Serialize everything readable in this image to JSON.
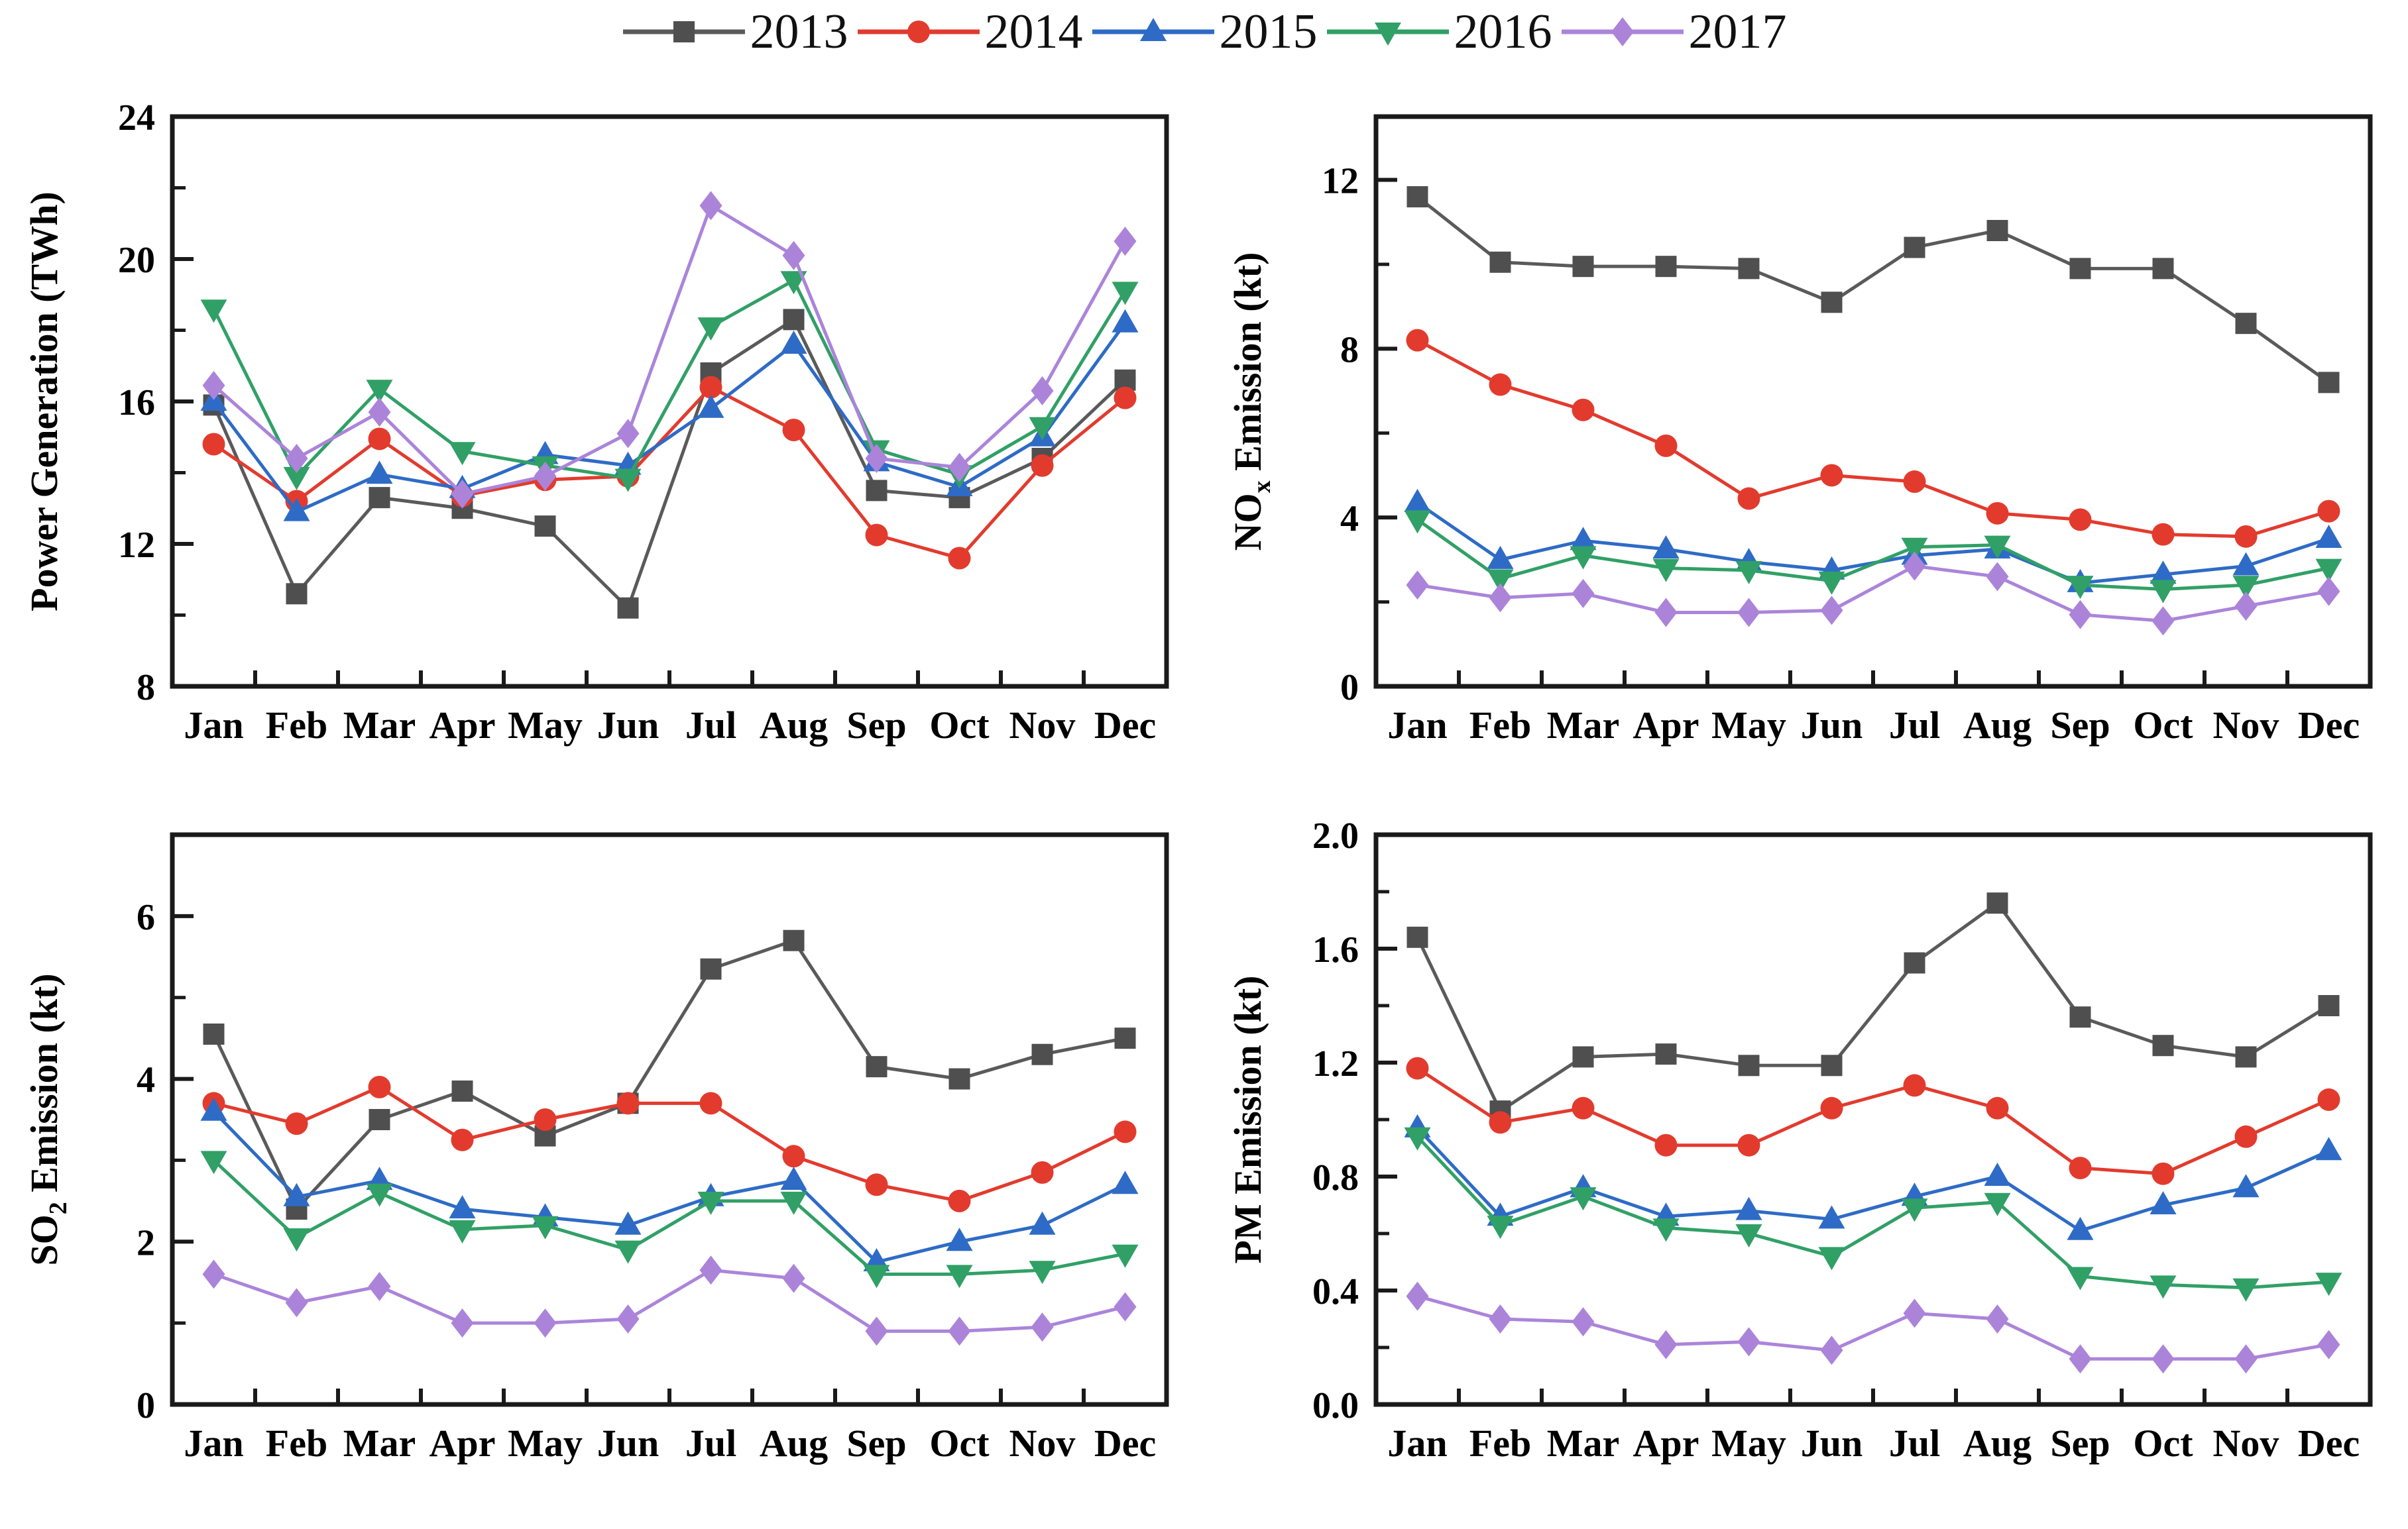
{
  "legend": {
    "items": [
      {
        "label": "2013",
        "color": "#4f4f4f",
        "line_color": "#5a5a5a",
        "marker": "square"
      },
      {
        "label": "2014",
        "color": "#e23b2e",
        "line_color": "#e23b2e",
        "marker": "circle"
      },
      {
        "label": "2015",
        "color": "#2e6bc6",
        "line_color": "#2e6bc6",
        "marker": "triangle-up"
      },
      {
        "label": "2016",
        "color": "#31a066",
        "line_color": "#31a066",
        "marker": "triangle-down"
      },
      {
        "label": "2017",
        "color": "#ab84da",
        "line_color": "#ab84da",
        "marker": "diamond"
      }
    ]
  },
  "months": [
    "Jan",
    "Feb",
    "Mar",
    "Apr",
    "May",
    "Jun",
    "Jul",
    "Aug",
    "Sep",
    "Oct",
    "Nov",
    "Dec"
  ],
  "chart_data": [
    {
      "id": "power-generation",
      "type": "line",
      "ylabel": "Power Generation (TWh)",
      "ylabel_parts": [
        {
          "text": "Power Generation (TWh)"
        }
      ],
      "ylim": [
        8,
        24
      ],
      "yticks": [
        8,
        12,
        16,
        20,
        24
      ],
      "ytick_labels": [
        "8",
        "12",
        "16",
        "20",
        "24"
      ],
      "yminor": [
        10,
        14,
        18,
        22
      ],
      "series": [
        {
          "name": "2013",
          "values": [
            15.9,
            10.6,
            13.3,
            13.0,
            12.5,
            10.2,
            16.8,
            18.3,
            13.5,
            13.3,
            14.4,
            16.6
          ]
        },
        {
          "name": "2014",
          "values": [
            14.8,
            13.2,
            14.95,
            13.35,
            13.8,
            13.9,
            16.4,
            15.2,
            12.25,
            11.6,
            14.2,
            16.1
          ]
        },
        {
          "name": "2015",
          "values": [
            16.0,
            12.9,
            13.95,
            13.55,
            14.5,
            14.2,
            15.8,
            17.6,
            14.3,
            13.6,
            15.0,
            18.2
          ]
        },
        {
          "name": "2016",
          "values": [
            18.6,
            13.9,
            16.35,
            14.6,
            14.2,
            13.85,
            18.1,
            19.4,
            14.65,
            13.95,
            15.3,
            19.1
          ]
        },
        {
          "name": "2017",
          "values": [
            16.45,
            14.4,
            15.7,
            13.4,
            13.9,
            15.1,
            21.5,
            20.1,
            14.4,
            14.15,
            16.3,
            20.5
          ]
        }
      ]
    },
    {
      "id": "nox-emission",
      "type": "line",
      "ylabel": "NOx Emission (kt)",
      "ylabel_parts": [
        {
          "text": "NO"
        },
        {
          "text": "x",
          "sub": true
        },
        {
          "text": " Emission (kt)"
        }
      ],
      "ylim": [
        0,
        13.5
      ],
      "yticks": [
        0,
        4,
        8,
        12
      ],
      "ytick_labels": [
        "0",
        "4",
        "8",
        "12"
      ],
      "yminor": [
        2,
        6,
        10
      ],
      "series": [
        {
          "name": "2013",
          "values": [
            11.6,
            10.05,
            9.95,
            9.95,
            9.9,
            9.1,
            10.4,
            10.8,
            9.9,
            9.9,
            8.6,
            7.2
          ]
        },
        {
          "name": "2014",
          "values": [
            8.2,
            7.15,
            6.55,
            5.7,
            4.45,
            5.0,
            4.85,
            4.1,
            3.95,
            3.6,
            3.55,
            4.15
          ]
        },
        {
          "name": "2015",
          "values": [
            4.35,
            3.0,
            3.45,
            3.25,
            2.95,
            2.75,
            3.1,
            3.25,
            2.45,
            2.65,
            2.85,
            3.5
          ]
        },
        {
          "name": "2016",
          "values": [
            3.95,
            2.55,
            3.1,
            2.8,
            2.75,
            2.5,
            3.3,
            3.35,
            2.4,
            2.3,
            2.4,
            2.8
          ]
        },
        {
          "name": "2017",
          "values": [
            2.4,
            2.1,
            2.2,
            1.75,
            1.75,
            1.8,
            2.85,
            2.6,
            1.7,
            1.55,
            1.9,
            2.25
          ]
        }
      ]
    },
    {
      "id": "so2-emission",
      "type": "line",
      "ylabel": "SO2 Emission (kt)",
      "ylabel_parts": [
        {
          "text": "SO"
        },
        {
          "text": "2",
          "sub": true
        },
        {
          "text": " Emission (kt)"
        }
      ],
      "ylim": [
        0,
        7
      ],
      "yticks": [
        0,
        2,
        4,
        6
      ],
      "ytick_labels": [
        "0",
        "2",
        "4",
        "6"
      ],
      "yminor": [
        1,
        3,
        5
      ],
      "series": [
        {
          "name": "2013",
          "values": [
            4.55,
            2.4,
            3.5,
            3.85,
            3.3,
            3.7,
            5.35,
            5.7,
            4.15,
            4.0,
            4.3,
            4.5
          ]
        },
        {
          "name": "2014",
          "values": [
            3.7,
            3.45,
            3.9,
            3.25,
            3.5,
            3.7,
            3.7,
            3.05,
            2.7,
            2.5,
            2.85,
            3.35
          ]
        },
        {
          "name": "2015",
          "values": [
            3.6,
            2.55,
            2.75,
            2.4,
            2.3,
            2.2,
            2.55,
            2.75,
            1.75,
            2.0,
            2.2,
            2.7
          ]
        },
        {
          "name": "2016",
          "values": [
            3.0,
            2.05,
            2.6,
            2.15,
            2.2,
            1.9,
            2.5,
            2.5,
            1.6,
            1.6,
            1.65,
            1.85
          ]
        },
        {
          "name": "2017",
          "values": [
            1.6,
            1.25,
            1.45,
            1.0,
            1.0,
            1.05,
            1.65,
            1.55,
            0.9,
            0.9,
            0.95,
            1.2
          ]
        }
      ]
    },
    {
      "id": "pm-emission",
      "type": "line",
      "ylabel": "PM Emission (kt)",
      "ylabel_parts": [
        {
          "text": "PM Emission (kt)"
        }
      ],
      "ylim": [
        0,
        2.0
      ],
      "yticks": [
        0,
        0.4,
        0.8,
        1.2,
        1.6,
        2.0
      ],
      "ytick_labels": [
        "0.0",
        "0.4",
        "0.8",
        "1.2",
        "1.6",
        "2.0"
      ],
      "yminor": [
        0.2,
        0.6,
        1.0,
        1.4,
        1.8
      ],
      "series": [
        {
          "name": "2013",
          "values": [
            1.64,
            1.03,
            1.22,
            1.23,
            1.19,
            1.19,
            1.55,
            1.76,
            1.36,
            1.26,
            1.22,
            1.4
          ]
        },
        {
          "name": "2014",
          "values": [
            1.18,
            0.99,
            1.04,
            0.91,
            0.91,
            1.04,
            1.12,
            1.04,
            0.83,
            0.81,
            0.94,
            1.07
          ]
        },
        {
          "name": "2015",
          "values": [
            0.97,
            0.66,
            0.76,
            0.66,
            0.68,
            0.65,
            0.73,
            0.8,
            0.61,
            0.7,
            0.76,
            0.89
          ]
        },
        {
          "name": "2016",
          "values": [
            0.94,
            0.63,
            0.73,
            0.62,
            0.6,
            0.52,
            0.69,
            0.71,
            0.45,
            0.42,
            0.41,
            0.43
          ]
        },
        {
          "name": "2017",
          "values": [
            0.38,
            0.3,
            0.29,
            0.21,
            0.22,
            0.19,
            0.32,
            0.3,
            0.16,
            0.16,
            0.16,
            0.21
          ]
        }
      ]
    }
  ],
  "style": {
    "axis_color": "#1a1a1a",
    "background": "#ffffff"
  }
}
